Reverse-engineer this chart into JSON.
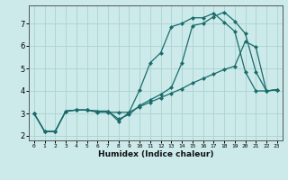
{
  "xlabel": "Humidex (Indice chaleur)",
  "ylabel": "",
  "bg_color": "#cceaea",
  "line_color": "#1a6b6b",
  "grid_color": "#b0d4d4",
  "xlim": [
    -0.5,
    23.5
  ],
  "ylim": [
    1.8,
    7.8
  ],
  "xticks": [
    0,
    1,
    2,
    3,
    4,
    5,
    6,
    7,
    8,
    9,
    10,
    11,
    12,
    13,
    14,
    15,
    16,
    17,
    18,
    19,
    20,
    21,
    22,
    23
  ],
  "yticks": [
    2,
    3,
    4,
    5,
    6,
    7
  ],
  "line1_x": [
    0,
    1,
    2,
    3,
    4,
    5,
    6,
    7,
    8,
    9,
    10,
    11,
    12,
    13,
    14,
    15,
    16,
    17,
    18,
    19,
    20,
    21,
    22,
    23
  ],
  "line1_y": [
    3.0,
    2.2,
    2.2,
    3.1,
    3.15,
    3.15,
    3.1,
    3.1,
    2.75,
    2.95,
    3.35,
    3.6,
    3.85,
    4.15,
    5.25,
    6.9,
    7.0,
    7.3,
    7.5,
    7.1,
    6.55,
    4.85,
    4.0,
    4.05
  ],
  "line2_x": [
    0,
    1,
    2,
    3,
    4,
    5,
    6,
    7,
    8,
    9,
    10,
    11,
    12,
    13,
    14,
    15,
    16,
    17,
    18,
    19,
    20,
    21,
    22,
    23
  ],
  "line2_y": [
    3.0,
    2.2,
    2.2,
    3.1,
    3.15,
    3.15,
    3.1,
    3.1,
    2.65,
    3.05,
    4.05,
    5.25,
    5.7,
    6.85,
    7.0,
    7.25,
    7.25,
    7.45,
    7.05,
    6.65,
    4.85,
    4.0,
    4.0,
    4.05
  ],
  "line3_x": [
    0,
    1,
    2,
    3,
    4,
    5,
    6,
    7,
    8,
    9,
    10,
    11,
    12,
    13,
    14,
    15,
    16,
    17,
    18,
    19,
    20,
    21,
    22,
    23
  ],
  "line3_y": [
    3.0,
    2.2,
    2.2,
    3.1,
    3.15,
    3.15,
    3.05,
    3.05,
    3.05,
    3.05,
    3.3,
    3.5,
    3.7,
    3.9,
    4.1,
    4.35,
    4.55,
    4.75,
    4.95,
    5.1,
    6.2,
    5.95,
    4.0,
    4.05
  ]
}
